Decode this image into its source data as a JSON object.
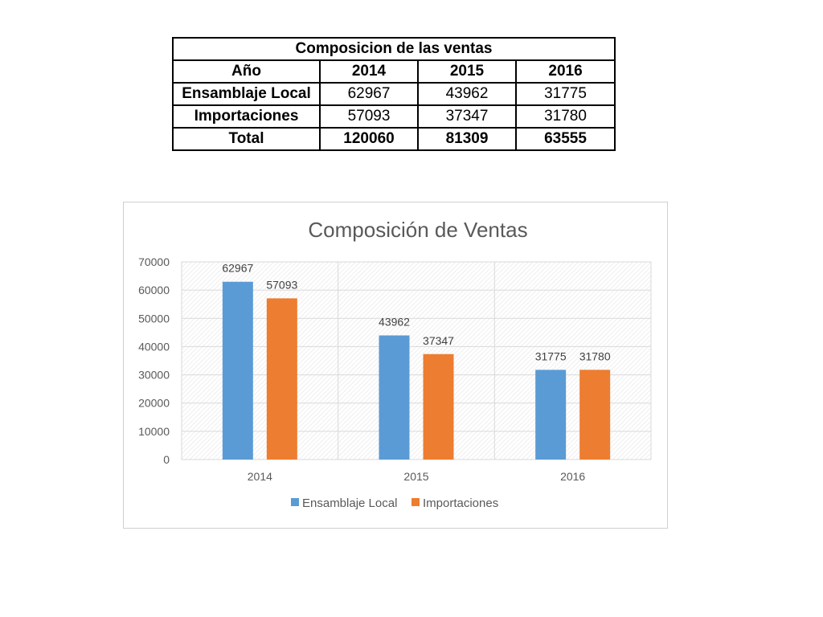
{
  "table": {
    "title": "Composicion de las ventas",
    "header_label": "Año",
    "years": [
      "2014",
      "2015",
      "2016"
    ],
    "rows": [
      {
        "label": "Ensamblaje Local",
        "values": [
          "62967",
          "43962",
          "31775"
        ],
        "bold": false
      },
      {
        "label": "Importaciones",
        "values": [
          "57093",
          "37347",
          "31780"
        ],
        "bold": false
      },
      {
        "label": "Total",
        "values": [
          "120060",
          "81309",
          "63555"
        ],
        "bold": true
      }
    ]
  },
  "chart_data": {
    "type": "bar",
    "title": "Composición de Ventas",
    "categories": [
      "2014",
      "2015",
      "2016"
    ],
    "series": [
      {
        "name": "Ensamblaje Local",
        "values": [
          62967,
          43962,
          31775
        ],
        "color": "#5b9bd5"
      },
      {
        "name": "Importaciones",
        "values": [
          57093,
          37347,
          31780
        ],
        "color": "#ed7d31"
      }
    ],
    "ylim": [
      0,
      70000
    ],
    "yticks": [
      0,
      10000,
      20000,
      30000,
      40000,
      50000,
      60000,
      70000
    ],
    "grid": true,
    "legend_position": "bottom",
    "data_labels": true
  }
}
